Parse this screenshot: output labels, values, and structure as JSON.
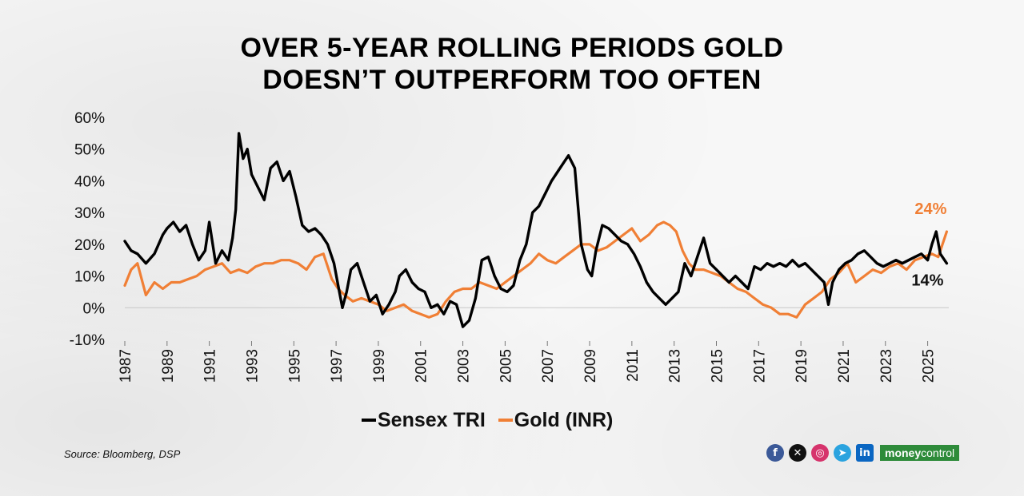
{
  "title_line1": "OVER 5-YEAR ROLLING PERIODS GOLD",
  "title_line2": "DOESN’T OUTPERFORM TOO OFTEN",
  "source": "Source: Bloomberg, DSP",
  "brand": {
    "part1": "money",
    "part2": "control"
  },
  "social_icons": [
    "facebook-icon",
    "x-icon",
    "instagram-icon",
    "telegram-icon",
    "linkedin-icon"
  ],
  "chart_data": {
    "type": "line",
    "title": "OVER 5-YEAR ROLLING PERIODS GOLD DOESN’T OUTPERFORM TOO OFTEN",
    "xlabel": "",
    "ylabel": "",
    "xlim": [
      1987,
      2026
    ],
    "ylim": [
      -10,
      60
    ],
    "y_ticks": [
      -10,
      0,
      10,
      20,
      30,
      40,
      50,
      60
    ],
    "y_tick_labels": [
      "-10%",
      "0%",
      "10%",
      "20%",
      "30%",
      "40%",
      "50%",
      "60%"
    ],
    "x_ticks": [
      1987,
      1989,
      1991,
      1993,
      1995,
      1997,
      1999,
      2001,
      2003,
      2005,
      2007,
      2009,
      2011,
      2013,
      2015,
      2017,
      2019,
      2021,
      2023,
      2025
    ],
    "x_tick_labels": [
      "1987",
      "1989",
      "1991",
      "1993",
      "1995",
      "1997",
      "1999",
      "2001",
      "2003",
      "2005",
      "2007",
      "2009",
      "2011",
      "2013",
      "2015",
      "2017",
      "2019",
      "2021",
      "2023",
      "2025"
    ],
    "grid": false,
    "legend_position": "bottom",
    "annotations": [
      {
        "text": "24%",
        "series": "Gold (INR)",
        "x": 2025.9,
        "y": 24
      },
      {
        "text": "14%",
        "series": "Sensex TRI",
        "x": 2025.9,
        "y": 14
      }
    ],
    "series": [
      {
        "name": "Sensex TRI",
        "color": "#000000",
        "x": [
          1987.0,
          1987.3,
          1987.6,
          1988.0,
          1988.4,
          1988.8,
          1989.0,
          1989.3,
          1989.6,
          1989.9,
          1990.2,
          1990.5,
          1990.8,
          1991.0,
          1991.3,
          1991.6,
          1991.9,
          1992.1,
          1992.25,
          1992.4,
          1992.6,
          1992.8,
          1993.0,
          1993.3,
          1993.6,
          1993.9,
          1994.2,
          1994.5,
          1994.8,
          1995.1,
          1995.4,
          1995.7,
          1996.0,
          1996.3,
          1996.6,
          1996.9,
          1997.1,
          1997.3,
          1997.5,
          1997.7,
          1998.0,
          1998.3,
          1998.6,
          1998.9,
          1999.2,
          1999.5,
          1999.8,
          2000.0,
          2000.3,
          2000.6,
          2000.9,
          2001.2,
          2001.5,
          2001.8,
          2002.1,
          2002.4,
          2002.7,
          2003.0,
          2003.3,
          2003.6,
          2003.9,
          2004.2,
          2004.5,
          2004.8,
          2005.1,
          2005.4,
          2005.7,
          2006.0,
          2006.3,
          2006.6,
          2006.9,
          2007.2,
          2007.5,
          2007.8,
          2008.0,
          2008.3,
          2008.6,
          2008.9,
          2009.1,
          2009.3,
          2009.6,
          2009.9,
          2010.2,
          2010.5,
          2010.8,
          2011.1,
          2011.4,
          2011.7,
          2012.0,
          2012.3,
          2012.6,
          2012.9,
          2013.2,
          2013.5,
          2013.8,
          2014.1,
          2014.4,
          2014.7,
          2015.0,
          2015.3,
          2015.6,
          2015.9,
          2016.2,
          2016.5,
          2016.8,
          2017.1,
          2017.4,
          2017.7,
          2018.0,
          2018.3,
          2018.6,
          2018.9,
          2019.2,
          2019.5,
          2019.8,
          2020.1,
          2020.3,
          2020.5,
          2020.8,
          2021.1,
          2021.4,
          2021.7,
          2022.0,
          2022.3,
          2022.6,
          2022.9,
          2023.2,
          2023.5,
          2023.8,
          2024.1,
          2024.4,
          2024.7,
          2025.0,
          2025.2,
          2025.4,
          2025.6,
          2025.9
        ],
        "values": [
          21,
          18,
          17,
          14,
          17,
          23,
          25,
          27,
          24,
          26,
          20,
          15,
          18,
          27,
          14,
          18,
          15,
          22,
          31,
          55,
          47,
          50,
          42,
          38,
          34,
          44,
          46,
          40,
          43,
          35,
          26,
          24,
          25,
          23,
          20,
          14,
          7,
          0,
          5,
          12,
          14,
          8,
          2,
          4,
          -2,
          1,
          5,
          10,
          12,
          8,
          6,
          5,
          0,
          1,
          -2,
          2,
          1,
          -6,
          -4,
          3,
          15,
          16,
          10,
          6,
          5,
          7,
          15,
          20,
          30,
          32,
          36,
          40,
          43,
          46,
          48,
          44,
          20,
          12,
          10,
          18,
          26,
          25,
          23,
          21,
          20,
          17,
          13,
          8,
          5,
          3,
          1,
          3,
          5,
          14,
          10,
          16,
          22,
          14,
          12,
          10,
          8,
          10,
          8,
          6,
          13,
          12,
          14,
          13,
          14,
          13,
          15,
          13,
          14,
          12,
          10,
          8,
          1,
          8,
          12,
          14,
          15,
          17,
          18,
          16,
          14,
          13,
          14,
          15,
          14,
          15,
          16,
          17,
          15,
          20,
          24,
          17,
          14
        ]
      },
      {
        "name": "Gold (INR)",
        "color": "#f07f35",
        "x": [
          1987.0,
          1987.3,
          1987.6,
          1988.0,
          1988.4,
          1988.8,
          1989.2,
          1989.6,
          1990.0,
          1990.4,
          1990.8,
          1991.2,
          1991.6,
          1992.0,
          1992.4,
          1992.8,
          1993.2,
          1993.6,
          1994.0,
          1994.4,
          1994.8,
          1995.2,
          1995.6,
          1996.0,
          1996.4,
          1996.8,
          1997.1,
          1997.4,
          1997.8,
          1998.2,
          1998.6,
          1999.0,
          1999.4,
          1999.8,
          2000.2,
          2000.6,
          2001.0,
          2001.4,
          2001.8,
          2002.2,
          2002.6,
          2003.0,
          2003.4,
          2003.8,
          2004.2,
          2004.6,
          2005.0,
          2005.4,
          2005.8,
          2006.2,
          2006.6,
          2007.0,
          2007.4,
          2007.8,
          2008.2,
          2008.6,
          2009.0,
          2009.4,
          2009.8,
          2010.2,
          2010.6,
          2011.0,
          2011.4,
          2011.8,
          2012.2,
          2012.5,
          2012.8,
          2013.1,
          2013.4,
          2013.7,
          2014.0,
          2014.4,
          2014.8,
          2015.2,
          2015.6,
          2016.0,
          2016.4,
          2016.8,
          2017.2,
          2017.6,
          2018.0,
          2018.4,
          2018.8,
          2019.2,
          2019.6,
          2020.0,
          2020.4,
          2020.8,
          2021.2,
          2021.6,
          2022.0,
          2022.4,
          2022.8,
          2023.2,
          2023.6,
          2024.0,
          2024.4,
          2024.8,
          2025.2,
          2025.5,
          2025.9
        ],
        "values": [
          7,
          12,
          14,
          4,
          8,
          6,
          8,
          8,
          9,
          10,
          12,
          13,
          14,
          11,
          12,
          11,
          13,
          14,
          14,
          15,
          15,
          14,
          12,
          16,
          17,
          9,
          6,
          4,
          2,
          3,
          2,
          1,
          -1,
          0,
          1,
          -1,
          -2,
          -3,
          -2,
          2,
          5,
          6,
          6,
          8,
          7,
          6,
          8,
          10,
          12,
          14,
          17,
          15,
          14,
          16,
          18,
          20,
          20,
          18,
          19,
          21,
          23,
          25,
          21,
          23,
          26,
          27,
          26,
          24,
          18,
          14,
          12,
          12,
          11,
          10,
          8,
          6,
          5,
          3,
          1,
          0,
          -2,
          -2,
          -3,
          1,
          3,
          5,
          9,
          11,
          14,
          8,
          10,
          12,
          11,
          13,
          14,
          12,
          15,
          16,
          17,
          16,
          24
        ]
      }
    ]
  }
}
